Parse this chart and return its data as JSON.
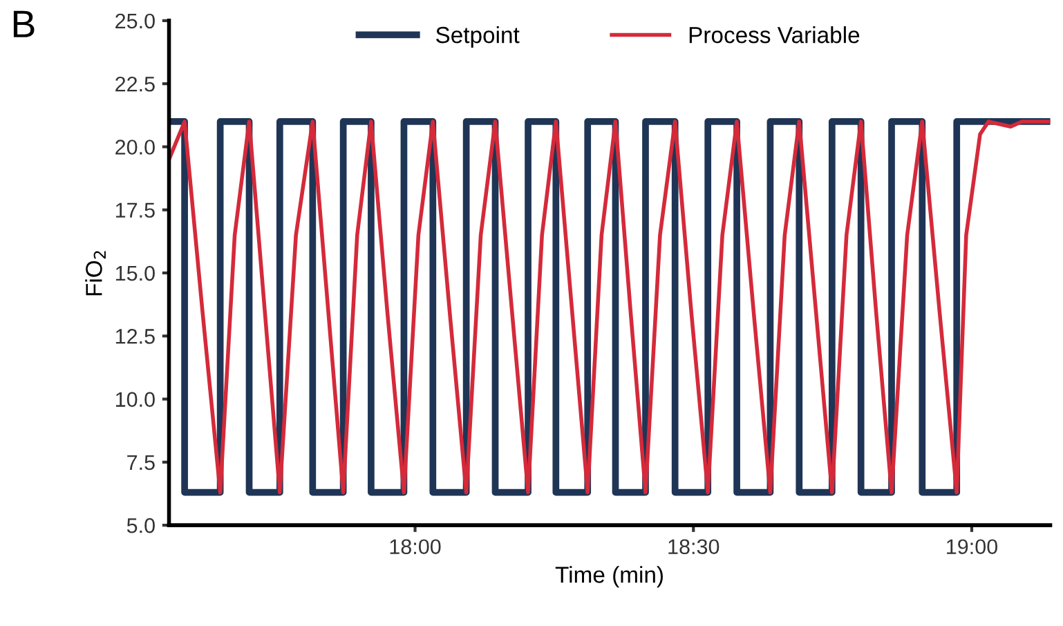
{
  "chart_data": {
    "type": "line",
    "title": "B",
    "xlabel": "Time (min)",
    "ylabel": "FiO$_{2}$",
    "xlim": [
      17.558,
      19.141
    ],
    "xticks": [
      {
        "value": 18,
        "label": "18:00"
      },
      {
        "value": 18.5,
        "label": "18:30"
      },
      {
        "value": 19,
        "label": "19:00"
      }
    ],
    "ylim": [
      5,
      25
    ],
    "yticks": [
      {
        "value": 5,
        "label": "5.0"
      },
      7.5,
      {
        "value": 10,
        "label": "10.0"
      },
      12.5,
      {
        "value": 15,
        "label": "15.0"
      },
      17.5,
      {
        "value": 20,
        "label": "20.0"
      },
      22.5,
      {
        "value": 25,
        "label": "25.0"
      }
    ],
    "grid": false,
    "legend": "top",
    "marker": "none",
    "line_style": "solid",
    "series": [
      {
        "name": "Setpoint",
        "color": "#1f3556",
        "x": [
          17.558,
          17.586,
          17.586,
          17.65,
          17.65,
          17.702,
          17.702,
          17.757,
          17.757,
          17.816,
          17.816,
          17.871,
          17.871,
          17.921,
          17.921,
          17.98,
          17.98,
          18.032,
          18.032,
          18.092,
          18.092,
          18.144,
          18.144,
          18.203,
          18.203,
          18.253,
          18.253,
          18.31,
          18.31,
          18.36,
          18.36,
          18.414,
          18.414,
          18.467,
          18.467,
          18.526,
          18.526,
          18.578,
          18.578,
          18.638,
          18.638,
          18.69,
          18.69,
          18.749,
          18.749,
          18.801,
          18.801,
          18.856,
          18.856,
          18.911,
          18.911,
          18.973,
          18.973,
          19.141
        ],
        "values": [
          21,
          21,
          6.3,
          6.3,
          21,
          21,
          6.3,
          6.3,
          21,
          21,
          6.3,
          6.3,
          21,
          21,
          6.3,
          6.3,
          21,
          21,
          6.3,
          6.3,
          21,
          21,
          6.3,
          6.3,
          21,
          21,
          6.3,
          6.3,
          21,
          21,
          6.3,
          6.3,
          21,
          21,
          6.3,
          6.3,
          21,
          21,
          6.3,
          6.3,
          21,
          21,
          6.3,
          6.3,
          21,
          21,
          6.3,
          6.3,
          21,
          21,
          6.3,
          6.3,
          21,
          21
        ]
      },
      {
        "name": "Process Variable",
        "color": "#d42a3a",
        "x": [
          17.558,
          17.586,
          17.618,
          17.65,
          17.676,
          17.702,
          17.73,
          17.757,
          17.786,
          17.816,
          17.844,
          17.871,
          17.896,
          17.921,
          17.95,
          17.98,
          18.006,
          18.032,
          18.062,
          18.092,
          18.118,
          18.144,
          18.174,
          18.203,
          18.228,
          18.253,
          18.282,
          18.31,
          18.335,
          18.36,
          18.387,
          18.414,
          18.44,
          18.467,
          18.496,
          18.526,
          18.552,
          18.578,
          18.608,
          18.638,
          18.664,
          18.69,
          18.72,
          18.749,
          18.775,
          18.801,
          18.828,
          18.856,
          18.884,
          18.911,
          18.942,
          18.973,
          18.99,
          19.015,
          19.03,
          19.07,
          19.09,
          19.141
        ],
        "values": [
          19.5,
          21,
          13.5,
          6.3,
          16.5,
          21,
          13.5,
          6.3,
          16.5,
          21,
          13.5,
          6.3,
          16.5,
          21,
          13.5,
          6.3,
          16.5,
          21,
          13.5,
          6.3,
          16.5,
          21,
          13.5,
          6.3,
          16.5,
          21,
          13.5,
          6.3,
          16.5,
          21,
          13.5,
          6.3,
          16.5,
          21,
          13.5,
          6.3,
          16.5,
          21,
          13.5,
          6.3,
          16.5,
          21,
          13.5,
          6.3,
          16.5,
          21,
          13.5,
          6.3,
          16.5,
          21,
          13.5,
          6.3,
          16.5,
          20.5,
          21,
          20.8,
          21,
          21
        ]
      }
    ]
  }
}
